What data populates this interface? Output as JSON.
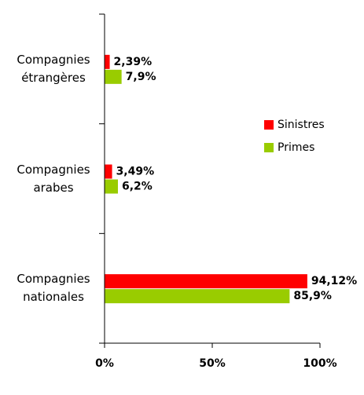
{
  "chart_data": {
    "type": "hbar",
    "categories": [
      "Compagnies étrangères",
      "Compagnies arabes",
      "Compagnies nationales"
    ],
    "series": [
      {
        "name": "Sinistres",
        "color": "#ff0000",
        "values": [
          2.39,
          3.49,
          94.12
        ],
        "value_labels": [
          "2,39%",
          "3,49%",
          "94,12%"
        ]
      },
      {
        "name": "Primes",
        "color": "#99cc00",
        "values": [
          7.9,
          6.2,
          85.9
        ],
        "value_labels": [
          "7,9%",
          "6,2%",
          "85,9%"
        ]
      }
    ],
    "xlim": [
      0,
      100
    ],
    "xticks": [
      {
        "value": 0,
        "label": "0%"
      },
      {
        "value": 50,
        "label": "50%"
      },
      {
        "value": 100,
        "label": "100%"
      }
    ],
    "legend": "right"
  }
}
